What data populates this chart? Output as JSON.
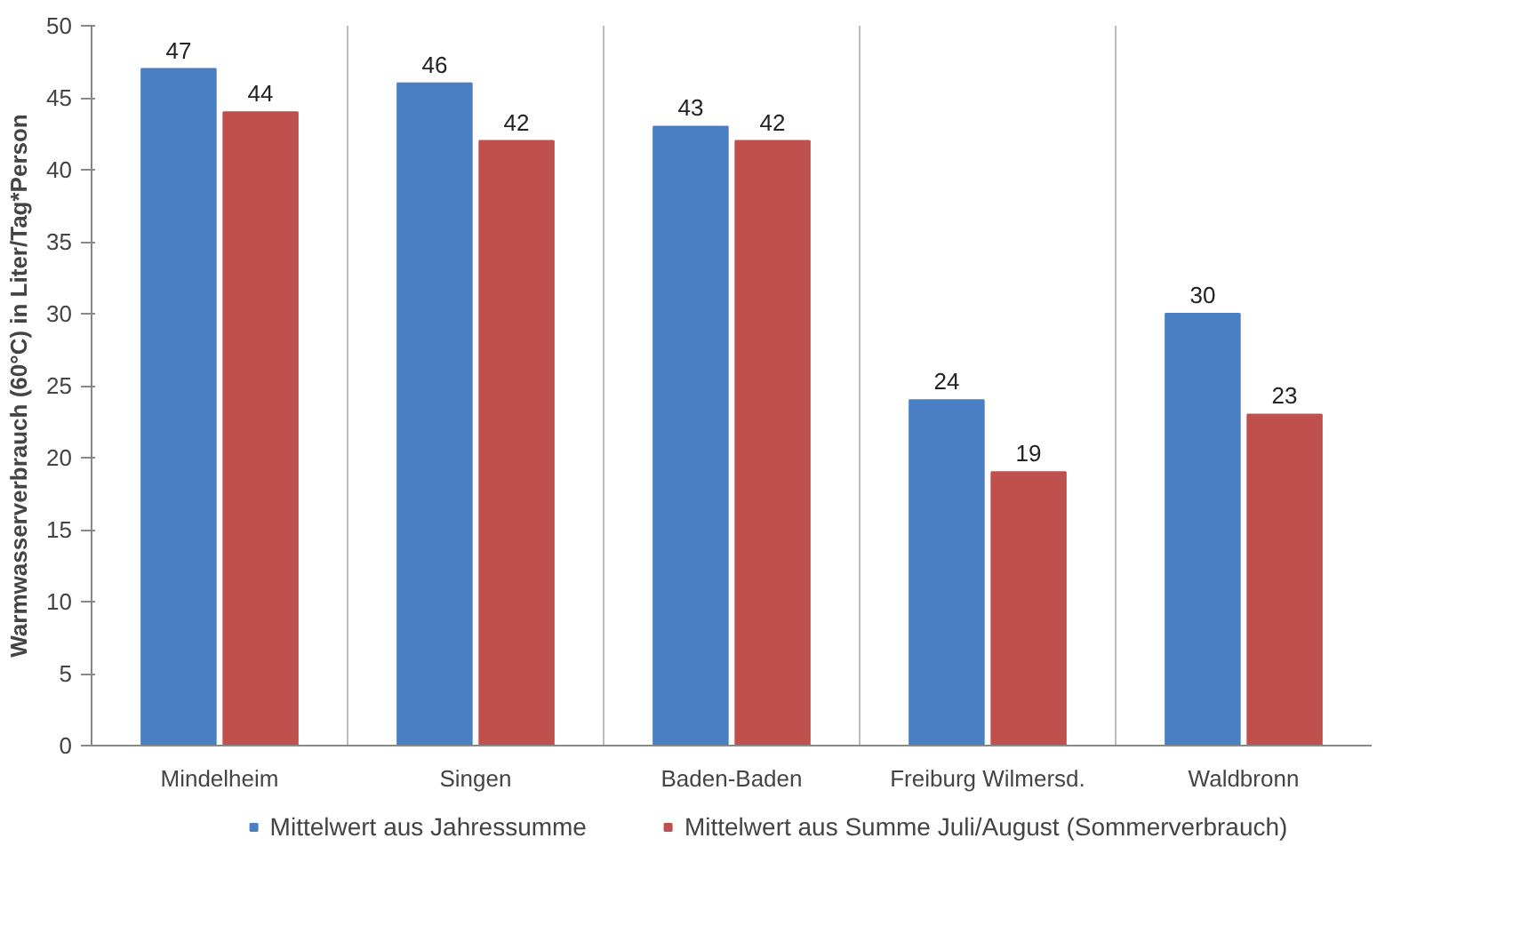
{
  "chart_data": {
    "type": "bar",
    "ylabel": "Warmwasserverbrauch (60°C) in Liter/Tag*Person",
    "categories": [
      "Mindelheim",
      "Singen",
      "Baden-Baden",
      "Freiburg Wilmersd.",
      "Waldbronn"
    ],
    "series": [
      {
        "name": "Mittelwert aus Jahressumme",
        "color": "#4a7fc4",
        "values": [
          47,
          46,
          43,
          24,
          30
        ]
      },
      {
        "name": "Mittelwert aus Summe Juli/August (Sommerverbrauch)",
        "color": "#c0504d",
        "values": [
          44,
          42,
          42,
          19,
          23
        ]
      }
    ],
    "ylim": [
      0,
      50
    ],
    "yticks": [
      0,
      5,
      10,
      15,
      20,
      25,
      30,
      35,
      40,
      45,
      50
    ],
    "grid": "x",
    "legend": "bottom",
    "data_labels": true
  }
}
